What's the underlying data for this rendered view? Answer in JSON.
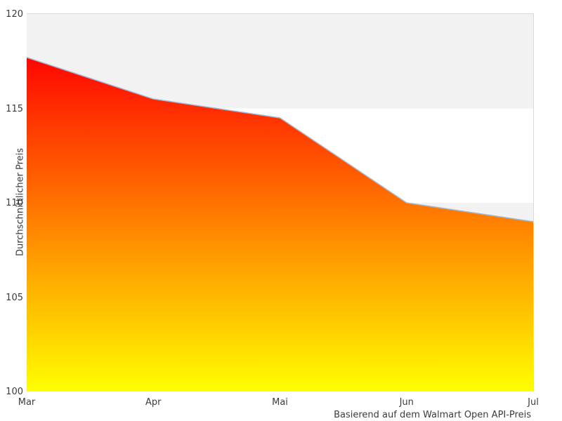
{
  "chart_data": {
    "type": "area",
    "x_categories": [
      "Mar",
      "Apr",
      "Mai",
      "Jun",
      "Jul"
    ],
    "series": [
      {
        "name": "Durchschnittlicher Preis",
        "values": [
          117.7,
          115.5,
          114.5,
          110.0,
          109.0
        ]
      }
    ],
    "ylabel": "Durchschnittlicher Preis",
    "xlabel": "",
    "title": "",
    "caption": "Basierend auf dem Walmart Open API-Preis",
    "ylim": [
      100,
      120
    ],
    "yticks": [
      120,
      115,
      110,
      105,
      100
    ],
    "grid": "alternating-horizontal-bands",
    "legend": "none"
  },
  "colors": {
    "band_gray": "#f2f2f2",
    "band_white": "#ffffff",
    "plot_border": "#d9d9d9",
    "area_gradient_top": "#ff0600",
    "area_gradient_bottom": "#ffff00",
    "line": "#9dbcdc",
    "text": "#3b3b3b",
    "background": "#ffffff"
  }
}
